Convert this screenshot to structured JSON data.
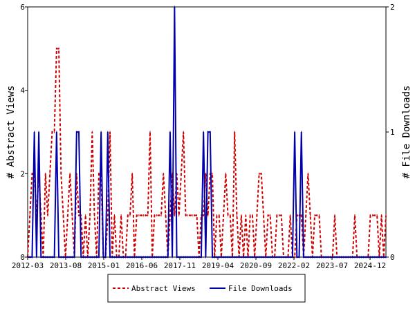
{
  "chart_data": {
    "type": "line",
    "xlabel": "",
    "ylabel_left": "# Abstract Views",
    "ylabel_right": "# File Downloads",
    "x_tick_labels": [
      "2012-03",
      "2013-08",
      "2015-01",
      "2016-06",
      "2017-11",
      "2019-04",
      "2020-09",
      "2022-02",
      "2023-07",
      "2024-12"
    ],
    "x_range": [
      "2012-03",
      "2025-05"
    ],
    "left_axis": {
      "range": [
        0,
        6
      ],
      "ticks": [
        0,
        2,
        4,
        6
      ]
    },
    "right_axis": {
      "range": [
        0,
        2
      ],
      "ticks": [
        0,
        1,
        2
      ]
    },
    "grid": false,
    "legend_position": "bottom-center",
    "series": [
      {
        "name": "Abstract Views",
        "axis": "left",
        "color": "#cc0000",
        "style": "dashed",
        "values": [
          0,
          1,
          2,
          2,
          1,
          2,
          1,
          0,
          2,
          1,
          2,
          3,
          3,
          5,
          5,
          2,
          1,
          0,
          1,
          2,
          1,
          0,
          2,
          1,
          1,
          0,
          1,
          0,
          1,
          3,
          1,
          0,
          2,
          2,
          0,
          0,
          1,
          3,
          0,
          1,
          0,
          0,
          1,
          0,
          0,
          1,
          1,
          2,
          0,
          1,
          1,
          1,
          1,
          1,
          1,
          3,
          0,
          1,
          1,
          1,
          1,
          2,
          1,
          0,
          1,
          2,
          1,
          2,
          1,
          2,
          3,
          1,
          1,
          1,
          1,
          1,
          1,
          0,
          1,
          1,
          2,
          1,
          2,
          2,
          0,
          1,
          1,
          0,
          1,
          2,
          1,
          1,
          0,
          3,
          1,
          0,
          1,
          0,
          1,
          0,
          1,
          1,
          0,
          1,
          2,
          2,
          1,
          0,
          1,
          1,
          0,
          0,
          1,
          1,
          1,
          0,
          0,
          0,
          1,
          0,
          0,
          1,
          1,
          1,
          0,
          1,
          2,
          1,
          0,
          1,
          1,
          1,
          0,
          0,
          0,
          0,
          0,
          0,
          1,
          0,
          0,
          0,
          0,
          0,
          0,
          0,
          0,
          1,
          0,
          0,
          0,
          0,
          0,
          0,
          1,
          1,
          1,
          1,
          0,
          1,
          0,
          1
        ]
      },
      {
        "name": "File Downloads",
        "axis": "right",
        "color": "#0000aa",
        "style": "solid",
        "values": [
          0,
          0,
          0,
          1,
          0,
          1,
          0,
          0,
          0,
          0,
          0,
          0,
          0,
          1,
          0,
          0,
          0,
          0,
          0,
          0,
          0,
          0,
          1,
          1,
          0,
          0,
          0,
          0,
          0,
          0,
          0,
          0,
          0,
          1,
          0,
          0,
          1,
          0,
          0,
          0,
          0,
          0,
          0,
          0,
          0,
          0,
          0,
          0,
          0,
          0,
          0,
          0,
          0,
          0,
          0,
          0,
          0,
          0,
          0,
          0,
          0,
          0,
          0,
          0,
          1,
          0,
          2,
          0,
          0,
          0,
          0,
          0,
          0,
          0,
          0,
          0,
          0,
          0,
          0,
          1,
          0,
          1,
          1,
          0,
          0,
          0,
          0,
          0,
          0,
          0,
          0,
          0,
          0,
          0,
          0,
          0,
          0,
          0,
          0,
          0,
          0,
          0,
          0,
          0,
          0,
          0,
          0,
          0,
          0,
          0,
          0,
          0,
          0,
          0,
          0,
          0,
          0,
          0,
          0,
          0,
          1,
          0,
          0,
          1,
          0,
          0,
          0,
          0,
          0,
          0,
          0,
          0,
          0,
          0,
          0,
          0,
          0,
          0,
          0,
          0,
          0,
          0,
          0,
          0,
          0,
          0,
          0,
          0,
          0,
          0,
          0,
          0,
          0,
          0,
          0,
          0,
          0,
          0,
          0,
          0,
          0,
          0
        ]
      }
    ]
  }
}
